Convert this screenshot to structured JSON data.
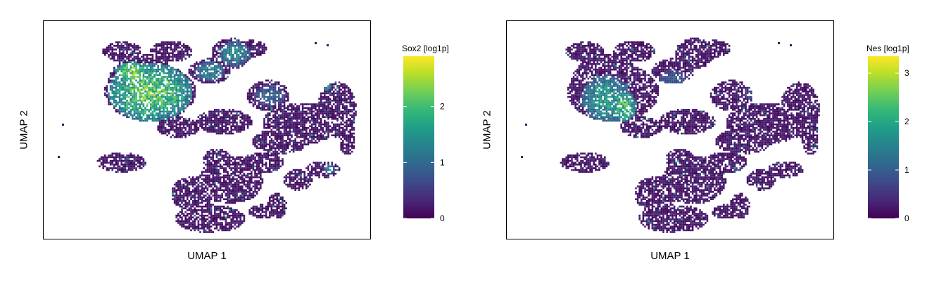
{
  "chart_data": [
    {
      "type": "scatter",
      "title": "",
      "xlabel": "UMAP 1",
      "ylabel": "UMAP 2",
      "legend": {
        "title": "Sox2 [log1p]",
        "placement": "right",
        "colormap": "viridis",
        "min": 0,
        "max": 2.9,
        "ticks": [
          0,
          1,
          2
        ],
        "tick_labels": [
          "0",
          "1",
          "2"
        ]
      },
      "xlim": [
        0,
        100
      ],
      "ylim": [
        0,
        100
      ],
      "grid": false,
      "axis_ticks": false
    },
    {
      "type": "scatter",
      "title": "",
      "xlabel": "UMAP 1",
      "ylabel": "UMAP 2",
      "legend": {
        "title": "Nes [log1p]",
        "placement": "right",
        "colormap": "viridis",
        "min": 0,
        "max": 3.35,
        "ticks": [
          0,
          1,
          2,
          3
        ],
        "tick_labels": [
          "0",
          "1",
          "2",
          "3"
        ]
      },
      "xlim": [
        0,
        100
      ],
      "ylim": [
        0,
        100
      ],
      "grid": false,
      "axis_ticks": false
    }
  ]
}
